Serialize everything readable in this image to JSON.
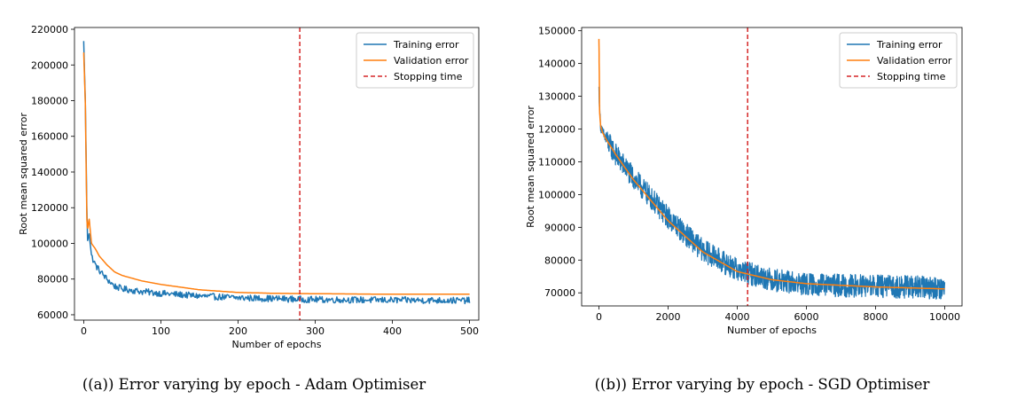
{
  "chart_data": [
    {
      "type": "line",
      "caption": "((a)) Error varying by epoch - Adam Optimiser",
      "xlabel": "Number of epochs",
      "ylabel": "Root mean squared error",
      "xlim": [
        -12,
        512
      ],
      "ylim": [
        57000,
        221000
      ],
      "xticks": [
        0,
        100,
        200,
        300,
        400,
        500
      ],
      "yticks": [
        60000,
        80000,
        100000,
        120000,
        140000,
        160000,
        180000,
        200000,
        220000
      ],
      "grid": false,
      "legend": {
        "position": "top-right",
        "entries": [
          "Training error",
          "Validation error",
          "Stopping time"
        ]
      },
      "series": [
        {
          "name": "Training error",
          "color": "#1f77b4",
          "noise": 1800,
          "x": [
            0,
            2,
            4,
            5,
            7,
            10,
            15,
            20,
            30,
            40,
            50,
            75,
            100,
            150,
            200,
            250,
            300,
            400,
            500
          ],
          "y": [
            213000,
            180000,
            120000,
            102000,
            106000,
            93000,
            88000,
            85000,
            80000,
            76000,
            74500,
            73000,
            72000,
            70500,
            69500,
            69000,
            68500,
            68200,
            68000
          ]
        },
        {
          "name": "Validation error",
          "color": "#ff7f0e",
          "noise": 0,
          "x": [
            0,
            2,
            4,
            5,
            7,
            10,
            15,
            20,
            30,
            40,
            50,
            75,
            100,
            150,
            200,
            250,
            300,
            400,
            500
          ],
          "y": [
            207000,
            180000,
            114000,
            108000,
            114000,
            100000,
            97000,
            93000,
            88000,
            84000,
            82000,
            79000,
            77000,
            74000,
            72500,
            72000,
            71800,
            71500,
            71500
          ]
        }
      ],
      "stopping_time": {
        "name": "Stopping time",
        "x": 280,
        "color": "#d62728"
      }
    },
    {
      "type": "line",
      "caption": "((b)) Error varying by epoch - SGD Optimiser",
      "xlabel": "Number of epochs",
      "ylabel": "Root mean squared error",
      "xlim": [
        -500,
        10500
      ],
      "ylim": [
        66000,
        151000
      ],
      "xticks": [
        0,
        2000,
        4000,
        6000,
        8000,
        10000
      ],
      "yticks": [
        70000,
        80000,
        90000,
        100000,
        110000,
        120000,
        130000,
        140000,
        150000
      ],
      "grid": false,
      "legend": {
        "position": "top-right",
        "entries": [
          "Training error",
          "Validation error",
          "Stopping time"
        ]
      },
      "series": [
        {
          "name": "Training error",
          "color": "#1f77b4",
          "noise": 3500,
          "x": [
            0,
            20,
            50,
            100,
            200,
            500,
            1000,
            2000,
            3000,
            4000,
            5000,
            6000,
            8000,
            10000
          ],
          "y": [
            132000,
            126000,
            121000,
            119000,
            117000,
            112000,
            105000,
            93000,
            83000,
            77000,
            74000,
            72500,
            72000,
            71500
          ]
        },
        {
          "name": "Validation error",
          "color": "#ff7f0e",
          "noise": 0,
          "x": [
            0,
            20,
            50,
            100,
            200,
            500,
            1000,
            2000,
            3000,
            4000,
            5000,
            6000,
            8000,
            10000
          ],
          "y": [
            147500,
            125000,
            121000,
            119000,
            117000,
            112000,
            104500,
            92000,
            82500,
            76500,
            74000,
            72800,
            71800,
            71200
          ]
        }
      ],
      "stopping_time": {
        "name": "Stopping time",
        "x": 4300,
        "color": "#d62728"
      }
    }
  ]
}
